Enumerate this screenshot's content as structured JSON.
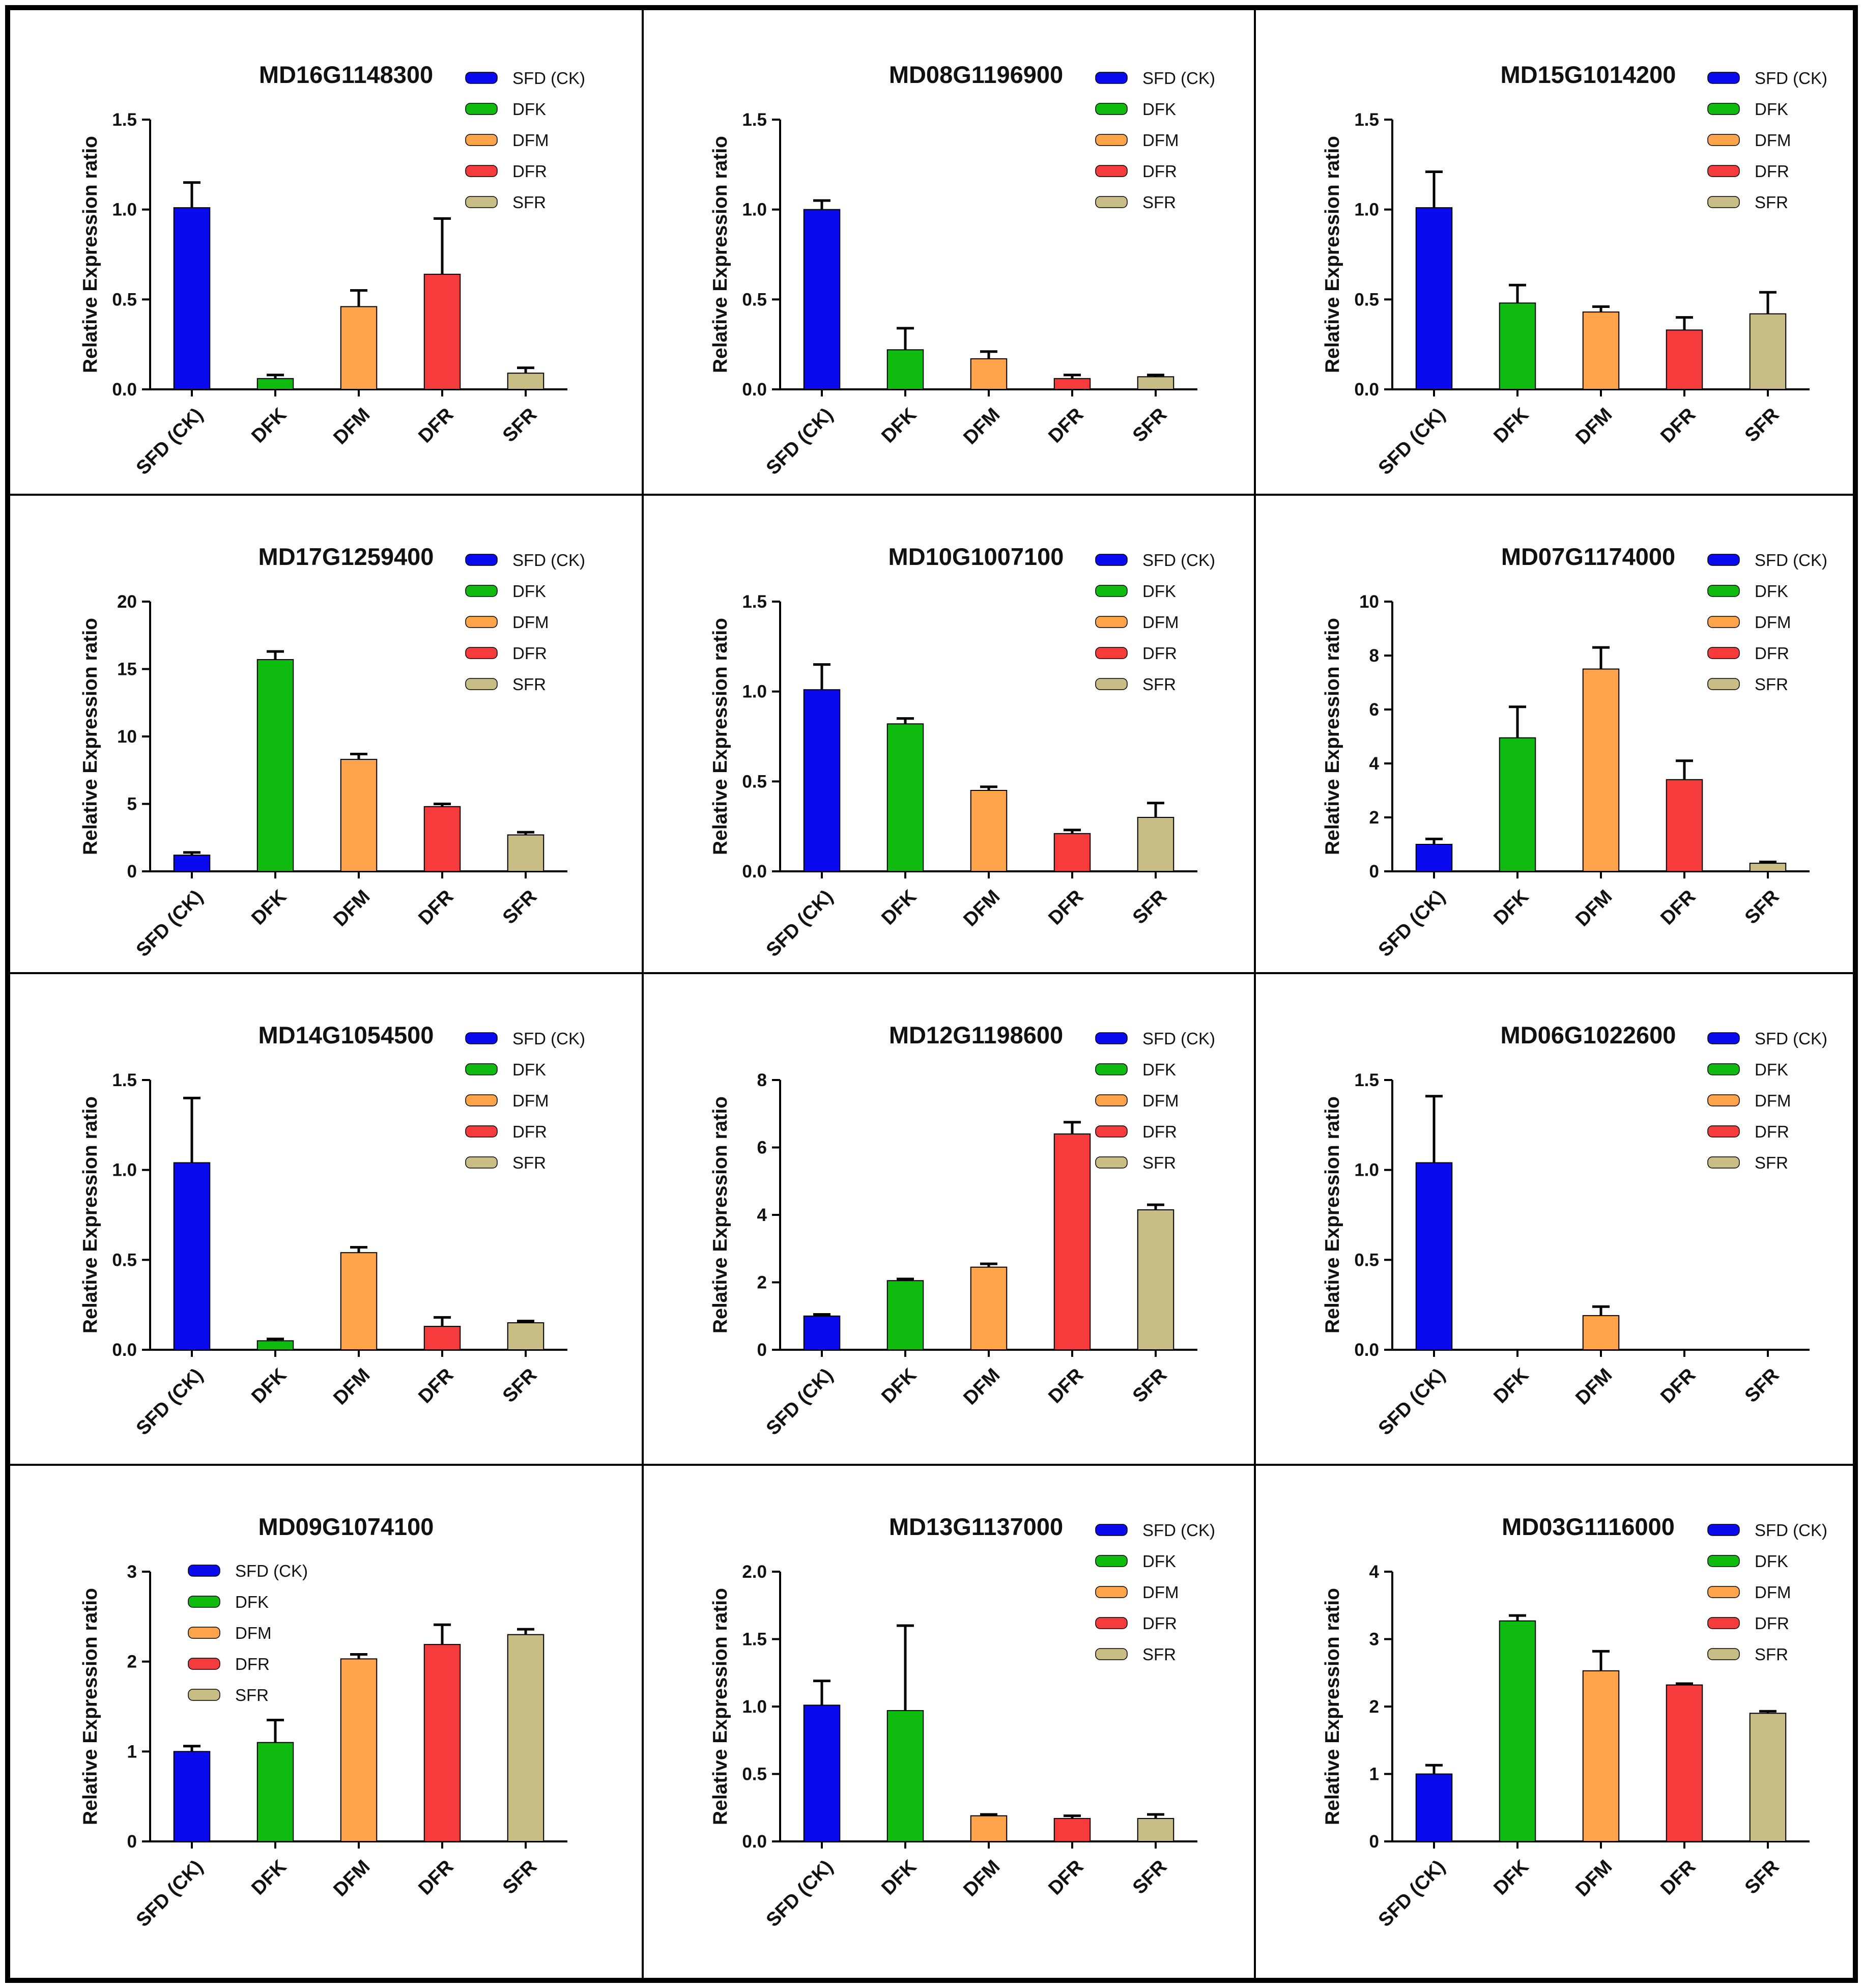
{
  "chart_data": [
    {
      "type": "bar",
      "title": "MD16G1148300",
      "ylabel": "Relative Expression ratio",
      "categories": [
        "SFD (CK)",
        "DFK",
        "DFM",
        "DFR",
        "SFR"
      ],
      "values": [
        1.01,
        0.06,
        0.46,
        0.64,
        0.09
      ],
      "errors": [
        0.14,
        0.02,
        0.09,
        0.31,
        0.03
      ],
      "ylim": [
        0,
        1.5
      ],
      "yticks": [
        "0.0",
        "0.5",
        "1.0",
        "1.5"
      ],
      "legend": "top-right"
    },
    {
      "type": "bar",
      "title": "MD08G1196900",
      "ylabel": "Relative Expression ratio",
      "categories": [
        "SFD (CK)",
        "DFK",
        "DFM",
        "DFR",
        "SFR"
      ],
      "values": [
        1.0,
        0.22,
        0.17,
        0.06,
        0.07
      ],
      "errors": [
        0.05,
        0.12,
        0.04,
        0.02,
        0.01
      ],
      "ylim": [
        0,
        1.5
      ],
      "yticks": [
        "0.0",
        "0.5",
        "1.0",
        "1.5"
      ],
      "legend": "top-right"
    },
    {
      "type": "bar",
      "title": "MD15G1014200",
      "ylabel": "Relative Expression ratio",
      "categories": [
        "SFD (CK)",
        "DFK",
        "DFM",
        "DFR",
        "SFR"
      ],
      "values": [
        1.01,
        0.48,
        0.43,
        0.33,
        0.42
      ],
      "errors": [
        0.2,
        0.1,
        0.03,
        0.07,
        0.12
      ],
      "ylim": [
        0,
        1.5
      ],
      "yticks": [
        "0.0",
        "0.5",
        "1.0",
        "1.5"
      ],
      "legend": "top-right"
    },
    {
      "type": "bar",
      "title": "MD17G1259400",
      "ylabel": "Relative Expression ratio",
      "categories": [
        "SFD (CK)",
        "DFK",
        "DFM",
        "DFR",
        "SFR"
      ],
      "values": [
        1.2,
        15.7,
        8.3,
        4.8,
        2.7
      ],
      "errors": [
        0.2,
        0.6,
        0.4,
        0.2,
        0.2
      ],
      "ylim": [
        0,
        20
      ],
      "yticks": [
        "0",
        "5",
        "10",
        "15",
        "20"
      ],
      "legend": "top-right"
    },
    {
      "type": "bar",
      "title": "MD10G1007100",
      "ylabel": "Relative Expression ratio",
      "categories": [
        "SFD (CK)",
        "DFK",
        "DFM",
        "DFR",
        "SFR"
      ],
      "values": [
        1.01,
        0.82,
        0.45,
        0.21,
        0.3
      ],
      "errors": [
        0.14,
        0.03,
        0.02,
        0.02,
        0.08
      ],
      "ylim": [
        0,
        1.5
      ],
      "yticks": [
        "0.0",
        "0.5",
        "1.0",
        "1.5"
      ],
      "legend": "top-right"
    },
    {
      "type": "bar",
      "title": "MD07G1174000",
      "ylabel": "Relative Expression ratio",
      "categories": [
        "SFD (CK)",
        "DFK",
        "DFM",
        "DFR",
        "SFR"
      ],
      "values": [
        1.0,
        4.95,
        7.5,
        3.4,
        0.3
      ],
      "errors": [
        0.2,
        1.15,
        0.8,
        0.7,
        0.05
      ],
      "ylim": [
        0,
        10
      ],
      "yticks": [
        "0",
        "2",
        "4",
        "6",
        "8",
        "10"
      ],
      "legend": "top-right"
    },
    {
      "type": "bar",
      "title": "MD14G1054500",
      "ylabel": "Relative Expression ratio",
      "categories": [
        "SFD (CK)",
        "DFK",
        "DFM",
        "DFR",
        "SFR"
      ],
      "values": [
        1.04,
        0.05,
        0.54,
        0.13,
        0.15
      ],
      "errors": [
        0.36,
        0.01,
        0.03,
        0.05,
        0.01
      ],
      "ylim": [
        0,
        1.5
      ],
      "yticks": [
        "0.0",
        "0.5",
        "1.0",
        "1.5"
      ],
      "legend": "top-right"
    },
    {
      "type": "bar",
      "title": "MD12G1198600",
      "ylabel": "Relative Expression ratio",
      "categories": [
        "SFD (CK)",
        "DFK",
        "DFM",
        "DFR",
        "SFR"
      ],
      "values": [
        1.0,
        2.05,
        2.45,
        6.4,
        4.15
      ],
      "errors": [
        0.05,
        0.05,
        0.1,
        0.35,
        0.15
      ],
      "ylim": [
        0,
        8
      ],
      "yticks": [
        "0",
        "2",
        "4",
        "6",
        "8"
      ],
      "legend": "top-right"
    },
    {
      "type": "bar",
      "title": "MD06G1022600",
      "ylabel": "Relative Expression ratio",
      "categories": [
        "SFD (CK)",
        "DFK",
        "DFM",
        "DFR",
        "SFR"
      ],
      "values": [
        1.04,
        0.0,
        0.19,
        0.0,
        0.0
      ],
      "errors": [
        0.37,
        0.0,
        0.05,
        0.0,
        0.0
      ],
      "ylim": [
        0,
        1.5
      ],
      "yticks": [
        "0.0",
        "0.5",
        "1.0",
        "1.5"
      ],
      "legend": "top-right"
    },
    {
      "type": "bar",
      "title": "MD09G1074100",
      "ylabel": "Relative Expression ratio",
      "categories": [
        "SFD (CK)",
        "DFK",
        "DFM",
        "DFR",
        "SFR"
      ],
      "values": [
        1.0,
        1.1,
        2.03,
        2.19,
        2.3
      ],
      "errors": [
        0.06,
        0.25,
        0.05,
        0.22,
        0.06
      ],
      "ylim": [
        0,
        3
      ],
      "yticks": [
        "0",
        "1",
        "2",
        "3"
      ],
      "legend": "top-left"
    },
    {
      "type": "bar",
      "title": "MD13G1137000",
      "ylabel": "Relative Expression ratio",
      "categories": [
        "SFD (CK)",
        "DFK",
        "DFM",
        "DFR",
        "SFR"
      ],
      "values": [
        1.01,
        0.97,
        0.19,
        0.17,
        0.17
      ],
      "errors": [
        0.18,
        0.63,
        0.01,
        0.02,
        0.03
      ],
      "ylim": [
        0,
        2.0
      ],
      "yticks": [
        "0.0",
        "0.5",
        "1.0",
        "1.5",
        "2.0"
      ],
      "legend": "top-right"
    },
    {
      "type": "bar",
      "title": "MD03G1116000",
      "ylabel": "Relative Expression ratio",
      "categories": [
        "SFD (CK)",
        "DFK",
        "DFM",
        "DFR",
        "SFR"
      ],
      "values": [
        1.0,
        3.27,
        2.53,
        2.32,
        1.9
      ],
      "errors": [
        0.13,
        0.08,
        0.29,
        0.02,
        0.03
      ],
      "ylim": [
        0,
        4
      ],
      "yticks": [
        "0",
        "1",
        "2",
        "3",
        "4"
      ],
      "legend": "top-right"
    }
  ],
  "series_colors": [
    "#0a0aee",
    "#0fbb0f",
    "#ffa44a",
    "#f53b3b",
    "#c9bd86"
  ]
}
